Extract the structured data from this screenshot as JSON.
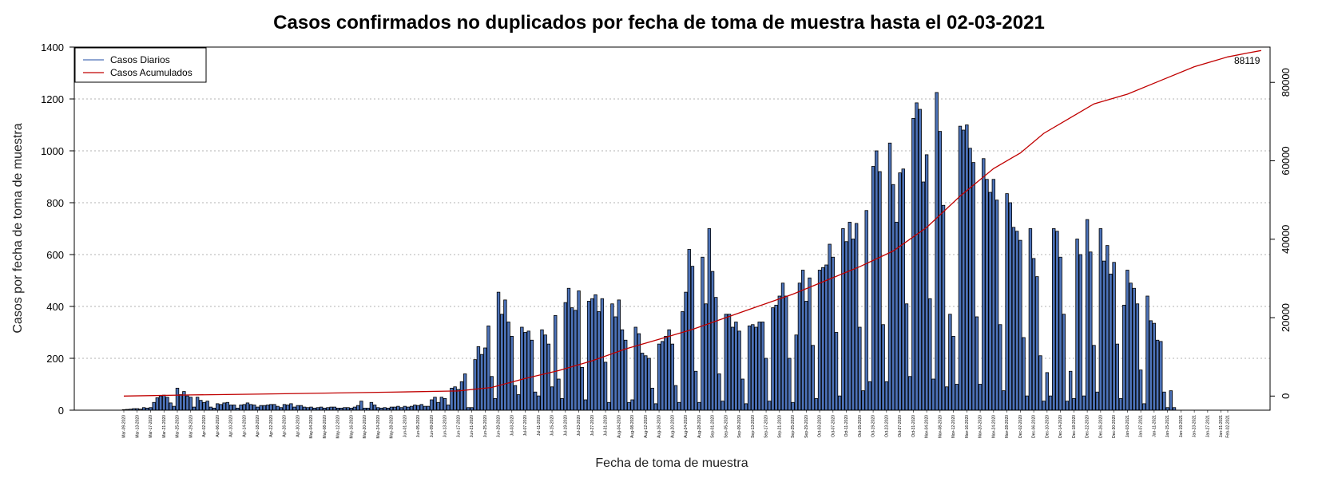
{
  "chart_data": {
    "type": "bar",
    "title": "Casos confirmados no duplicados por fecha de toma de muestra hasta el 02-03-2021",
    "xlabel": "Fecha de toma de muestra",
    "ylabel": "Casos por fecha de toma de muestra",
    "ylim": [
      0,
      1400
    ],
    "y_ticks": [
      0,
      200,
      400,
      600,
      800,
      1000,
      1200,
      1400
    ],
    "y2lim": [
      -3600,
      89000
    ],
    "y2_ticks": [
      0,
      20000,
      40000,
      60000,
      80000
    ],
    "grid": "horizontal dotted",
    "legend_position": "top-left",
    "final_cumulative_label": "88119",
    "colors": {
      "bars": "#4c72b8",
      "bar_edge": "#000000",
      "cumulative": "#c00000",
      "daily_legend": "#4c72b8"
    },
    "x_start_date": "2020-03-09",
    "x_end_date": "2021-02-02",
    "x_ticks": [
      "Mar-09-2020",
      "Mar-13-2020",
      "Mar-17-2020",
      "Mar-21-2020",
      "Mar-25-2020",
      "Mar-29-2020",
      "Apr-02-2020",
      "Apr-06-2020",
      "Apr-10-2020",
      "Apr-14-2020",
      "Apr-18-2020",
      "Apr-22-2020",
      "Apr-26-2020",
      "Apr-30-2020",
      "May-04-2020",
      "May-08-2020",
      "May-12-2020",
      "May-16-2020",
      "May-20-2020",
      "May-24-2020",
      "May-28-2020",
      "Jun-01-2020",
      "Jun-05-2020",
      "Jun-09-2020",
      "Jun-13-2020",
      "Jun-17-2020",
      "Jun-21-2020",
      "Jun-25-2020",
      "Jun-29-2020",
      "Jul-03-2020",
      "Jul-07-2020",
      "Jul-11-2020",
      "Jul-15-2020",
      "Jul-19-2020",
      "Jul-23-2020",
      "Jul-27-2020",
      "Jul-31-2020",
      "Aug-04-2020",
      "Aug-08-2020",
      "Aug-12-2020",
      "Aug-16-2020",
      "Aug-20-2020",
      "Aug-24-2020",
      "Aug-28-2020",
      "Sep-01-2020",
      "Sep-05-2020",
      "Sep-09-2020",
      "Sep-13-2020",
      "Sep-17-2020",
      "Sep-21-2020",
      "Sep-25-2020",
      "Sep-29-2020",
      "Oct-03-2020",
      "Oct-07-2020",
      "Oct-11-2020",
      "Oct-15-2020",
      "Oct-19-2020",
      "Oct-23-2020",
      "Oct-27-2020",
      "Oct-31-2020",
      "Nov-04-2020",
      "Nov-08-2020",
      "Nov-12-2020",
      "Nov-16-2020",
      "Nov-20-2020",
      "Nov-24-2020",
      "Nov-28-2020",
      "Dec-02-2020",
      "Dec-06-2020",
      "Dec-10-2020",
      "Dec-14-2020",
      "Dec-18-2020",
      "Dec-22-2020",
      "Dec-26-2020",
      "Dec-30-2020",
      "Jan-03-2021",
      "Jan-07-2021",
      "Jan-11-2021",
      "Jan-15-2021",
      "Jan-19-2021",
      "Jan-23-2021",
      "Jan-27-2021",
      "Jan-31-2021",
      "Feb-02-2021"
    ],
    "series": [
      {
        "name": "Casos Diarios",
        "values": [
          2,
          3,
          4,
          6,
          6,
          4,
          10,
          8,
          10,
          30,
          48,
          55,
          58,
          50,
          28,
          15,
          85,
          60,
          72,
          55,
          50,
          12,
          50,
          38,
          30,
          35,
          12,
          8,
          25,
          22,
          28,
          30,
          20,
          20,
          8,
          20,
          22,
          28,
          22,
          20,
          12,
          18,
          18,
          20,
          22,
          22,
          15,
          10,
          22,
          20,
          25,
          12,
          18,
          18,
          12,
          10,
          12,
          8,
          10,
          12,
          8,
          10,
          12,
          12,
          8,
          8,
          10,
          10,
          8,
          12,
          18,
          35,
          8,
          8,
          30,
          20,
          10,
          8,
          10,
          8,
          12,
          12,
          15,
          10,
          15,
          12,
          15,
          20,
          18,
          22,
          15,
          15,
          40,
          50,
          30,
          50,
          45,
          20,
          85,
          90,
          80,
          110,
          140,
          10,
          10,
          195,
          245,
          215,
          240,
          325,
          130,
          45,
          455,
          370,
          425,
          340,
          285,
          95,
          60,
          320,
          300,
          305,
          270,
          70,
          55,
          310,
          290,
          255,
          90,
          365,
          120,
          45,
          415,
          470,
          395,
          385,
          460,
          165,
          40,
          420,
          430,
          445,
          380,
          430,
          185,
          30,
          410,
          360,
          425,
          310,
          270,
          30,
          40,
          320,
          295,
          220,
          210,
          200,
          85,
          25,
          255,
          265,
          285,
          310,
          255,
          95,
          30,
          380,
          455,
          620,
          555,
          150,
          30,
          590,
          410,
          700,
          535,
          435,
          140,
          35,
          370,
          370,
          320,
          340,
          305,
          120,
          25,
          325,
          330,
          320,
          340,
          340,
          200,
          35,
          395,
          405,
          440,
          490,
          440,
          200,
          30,
          290,
          490,
          540,
          420,
          510,
          250,
          45,
          540,
          550,
          560,
          640,
          590,
          300,
          55,
          700,
          650,
          725,
          660,
          720,
          320,
          75,
          770,
          110,
          940,
          1000,
          920,
          330,
          110,
          1030,
          870,
          725,
          915,
          930,
          410,
          130,
          1125,
          1185,
          1160,
          880,
          985,
          430,
          120,
          1225,
          1075,
          790,
          90,
          370,
          285,
          100,
          1095,
          1080,
          1100,
          1010,
          955,
          360,
          100,
          970,
          890,
          840,
          890,
          810,
          330,
          75,
          835,
          800,
          705,
          690,
          655,
          280,
          55,
          700,
          585,
          515,
          210,
          35,
          145,
          55,
          700,
          690,
          590,
          370,
          35,
          150,
          45,
          660,
          600,
          55,
          735,
          610,
          250,
          70,
          700,
          575,
          635,
          525,
          570,
          255,
          45,
          405,
          540,
          490,
          470,
          410,
          155,
          25,
          440,
          345,
          335,
          270,
          265,
          70,
          10,
          75,
          10
        ]
      },
      {
        "name": "Casos Acumulados",
        "points": [
          [
            0,
            0
          ],
          [
            20,
            280
          ],
          [
            40,
            500
          ],
          [
            60,
            750
          ],
          [
            80,
            1000
          ],
          [
            100,
            1300
          ],
          [
            110,
            2200
          ],
          [
            120,
            4500
          ],
          [
            130,
            6500
          ],
          [
            140,
            9000
          ],
          [
            150,
            12000
          ],
          [
            160,
            14500
          ],
          [
            170,
            17000
          ],
          [
            180,
            20000
          ],
          [
            190,
            23000
          ],
          [
            200,
            26000
          ],
          [
            210,
            29500
          ],
          [
            220,
            33000
          ],
          [
            230,
            37000
          ],
          [
            240,
            43000
          ],
          [
            250,
            51000
          ],
          [
            260,
            58000
          ],
          [
            268,
            62000
          ],
          [
            275,
            67000
          ],
          [
            283,
            71000
          ],
          [
            290,
            74500
          ],
          [
            300,
            77000
          ],
          [
            310,
            80500
          ],
          [
            320,
            84000
          ],
          [
            330,
            86500
          ],
          [
            336,
            87500
          ],
          [
            340,
            88119
          ]
        ]
      }
    ]
  }
}
